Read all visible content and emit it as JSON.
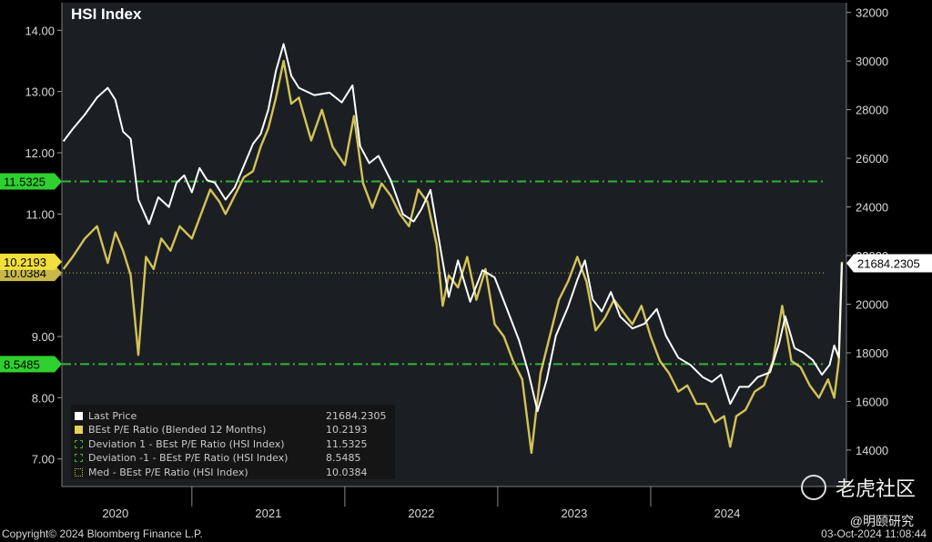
{
  "title": "HSI Index",
  "footer": {
    "copyright": "Copyright© 2024 Bloomberg Finance L.P.",
    "timestamp": "03-Oct-2024 11:08:44"
  },
  "watermarks": {
    "brand": "老虎社区",
    "author": "@明颐研究"
  },
  "colors": {
    "background": "#000000",
    "plot_bg": "#1b1f24",
    "last_price": "#ffffff",
    "pe_ratio": "#e3d15a",
    "deviation": "#2fb52f",
    "median": "#c8b84a",
    "pe_label_bg": "#f2de3c",
    "dev_label_bg": "#2fcf2f"
  },
  "legend": [
    {
      "name": "Last Price",
      "value": "21684.2305",
      "color": "#ffffff",
      "style": "solid"
    },
    {
      "name": "BEst P/E Ratio (Blended 12 Months)",
      "value": "10.2193",
      "color": "#e3d15a",
      "style": "solid"
    },
    {
      "name": "Deviation 1 - BEst P/E Ratio (HSI Index)",
      "value": "11.5325",
      "color": "#2fb52f",
      "style": "dashed"
    },
    {
      "name": "Deviation  -1 - BEst P/E Ratio (HSI Index)",
      "value": "8.5485",
      "color": "#2fb52f",
      "style": "dashed"
    },
    {
      "name": "Med - BEst P/E Ratio (HSI Index)",
      "value": "10.0384",
      "color": "#c8b84a",
      "style": "dotted"
    }
  ],
  "badges": {
    "dev_upper": "11.5325",
    "pe_last": "10.2193",
    "median": "10.0384",
    "dev_lower": "8.5485",
    "price_last": "21684.2305"
  },
  "chart_data": {
    "type": "line",
    "title": "HSI Index",
    "x_ticks": [
      "2020",
      "2021",
      "2022",
      "2023",
      "2024"
    ],
    "x_range": [
      2019.65,
      2024.78
    ],
    "left_axis": {
      "ticks": [
        "7.00",
        "8.00",
        "9.00",
        "10.00",
        "11.00",
        "12.00",
        "13.00",
        "14.00"
      ],
      "ylim": [
        6.55,
        14.45
      ]
    },
    "right_axis": {
      "ticks": [
        "14000",
        "16000",
        "18000",
        "20000",
        "22000",
        "24000",
        "26000",
        "28000",
        "30000",
        "32000"
      ],
      "ylim": [
        12500,
        32400
      ]
    },
    "reference_lines": [
      {
        "name": "Deviation 1 - BEst P/E Ratio (HSI Index)",
        "value": 11.5325,
        "style": "dash-dot"
      },
      {
        "name": "Deviation  -1 - BEst P/E Ratio (HSI Index)",
        "value": 8.5485,
        "style": "dash-dot"
      },
      {
        "name": "Med - BEst P/E Ratio (HSI Index)",
        "value": 10.0384,
        "style": "dotted"
      }
    ],
    "series": [
      {
        "name": "Last Price",
        "axis": "right",
        "points": [
          [
            2019.66,
            26700
          ],
          [
            2019.72,
            27200
          ],
          [
            2019.8,
            27800
          ],
          [
            2019.88,
            28500
          ],
          [
            2019.95,
            28900
          ],
          [
            2020.0,
            28400
          ],
          [
            2020.05,
            27100
          ],
          [
            2020.1,
            26800
          ],
          [
            2020.15,
            24300
          ],
          [
            2020.22,
            23300
          ],
          [
            2020.28,
            24400
          ],
          [
            2020.35,
            24000
          ],
          [
            2020.4,
            25000
          ],
          [
            2020.45,
            25300
          ],
          [
            2020.5,
            24600
          ],
          [
            2020.55,
            25600
          ],
          [
            2020.6,
            25100
          ],
          [
            2020.65,
            25000
          ],
          [
            2020.72,
            24300
          ],
          [
            2020.78,
            24800
          ],
          [
            2020.84,
            25700
          ],
          [
            2020.9,
            26600
          ],
          [
            2020.95,
            27000
          ],
          [
            2021.0,
            28000
          ],
          [
            2021.05,
            29600
          ],
          [
            2021.1,
            30700
          ],
          [
            2021.15,
            29400
          ],
          [
            2021.2,
            28900
          ],
          [
            2021.3,
            28600
          ],
          [
            2021.4,
            28700
          ],
          [
            2021.48,
            28300
          ],
          [
            2021.55,
            29000
          ],
          [
            2021.6,
            26500
          ],
          [
            2021.66,
            25800
          ],
          [
            2021.72,
            26100
          ],
          [
            2021.8,
            25100
          ],
          [
            2021.88,
            23700
          ],
          [
            2021.95,
            23400
          ],
          [
            2022.0,
            23900
          ],
          [
            2022.06,
            24700
          ],
          [
            2022.12,
            22500
          ],
          [
            2022.18,
            20300
          ],
          [
            2022.24,
            21800
          ],
          [
            2022.32,
            20100
          ],
          [
            2022.4,
            21400
          ],
          [
            2022.48,
            21100
          ],
          [
            2022.56,
            19800
          ],
          [
            2022.64,
            18500
          ],
          [
            2022.7,
            17200
          ],
          [
            2022.76,
            15600
          ],
          [
            2022.82,
            16900
          ],
          [
            2022.88,
            18700
          ],
          [
            2022.96,
            19900
          ],
          [
            2023.02,
            21000
          ],
          [
            2023.07,
            21800
          ],
          [
            2023.12,
            20200
          ],
          [
            2023.18,
            19700
          ],
          [
            2023.24,
            20500
          ],
          [
            2023.3,
            19500
          ],
          [
            2023.38,
            19000
          ],
          [
            2023.46,
            19200
          ],
          [
            2023.54,
            19800
          ],
          [
            2023.6,
            18700
          ],
          [
            2023.68,
            17800
          ],
          [
            2023.76,
            17500
          ],
          [
            2023.84,
            17000
          ],
          [
            2023.9,
            16800
          ],
          [
            2023.96,
            17100
          ],
          [
            2024.02,
            15900
          ],
          [
            2024.08,
            16600
          ],
          [
            2024.14,
            16600
          ],
          [
            2024.2,
            17000
          ],
          [
            2024.28,
            17200
          ],
          [
            2024.34,
            18400
          ],
          [
            2024.38,
            19500
          ],
          [
            2024.44,
            18200
          ],
          [
            2024.5,
            18000
          ],
          [
            2024.56,
            17700
          ],
          [
            2024.62,
            17100
          ],
          [
            2024.67,
            17500
          ],
          [
            2024.7,
            18300
          ],
          [
            2024.73,
            17800
          ],
          [
            2024.75,
            21684
          ]
        ]
      },
      {
        "name": "BEst P/E Ratio (Blended 12 Months)",
        "axis": "left",
        "points": [
          [
            2019.66,
            10.1
          ],
          [
            2019.72,
            10.3
          ],
          [
            2019.8,
            10.6
          ],
          [
            2019.88,
            10.8
          ],
          [
            2019.95,
            10.2
          ],
          [
            2020.0,
            10.7
          ],
          [
            2020.05,
            10.4
          ],
          [
            2020.1,
            10.0
          ],
          [
            2020.15,
            8.7
          ],
          [
            2020.2,
            10.3
          ],
          [
            2020.25,
            10.1
          ],
          [
            2020.3,
            10.6
          ],
          [
            2020.36,
            10.4
          ],
          [
            2020.42,
            10.8
          ],
          [
            2020.5,
            10.6
          ],
          [
            2020.56,
            11.0
          ],
          [
            2020.62,
            11.4
          ],
          [
            2020.68,
            11.2
          ],
          [
            2020.72,
            11.0
          ],
          [
            2020.78,
            11.3
          ],
          [
            2020.84,
            11.6
          ],
          [
            2020.9,
            11.7
          ],
          [
            2020.95,
            12.1
          ],
          [
            2021.0,
            12.4
          ],
          [
            2021.05,
            12.9
          ],
          [
            2021.1,
            13.5
          ],
          [
            2021.15,
            12.8
          ],
          [
            2021.2,
            12.9
          ],
          [
            2021.28,
            12.2
          ],
          [
            2021.35,
            12.7
          ],
          [
            2021.42,
            12.1
          ],
          [
            2021.5,
            11.8
          ],
          [
            2021.56,
            12.6
          ],
          [
            2021.62,
            11.5
          ],
          [
            2021.68,
            11.1
          ],
          [
            2021.74,
            11.5
          ],
          [
            2021.8,
            11.3
          ],
          [
            2021.86,
            11.0
          ],
          [
            2021.92,
            10.8
          ],
          [
            2021.98,
            11.4
          ],
          [
            2022.04,
            11.2
          ],
          [
            2022.1,
            10.5
          ],
          [
            2022.14,
            9.5
          ],
          [
            2022.18,
            10.0
          ],
          [
            2022.24,
            9.8
          ],
          [
            2022.3,
            10.3
          ],
          [
            2022.36,
            9.6
          ],
          [
            2022.42,
            10.1
          ],
          [
            2022.48,
            9.2
          ],
          [
            2022.54,
            9.0
          ],
          [
            2022.6,
            8.6
          ],
          [
            2022.66,
            8.3
          ],
          [
            2022.72,
            7.1
          ],
          [
            2022.78,
            8.4
          ],
          [
            2022.84,
            9.0
          ],
          [
            2022.9,
            9.6
          ],
          [
            2022.96,
            9.9
          ],
          [
            2023.02,
            10.3
          ],
          [
            2023.08,
            9.9
          ],
          [
            2023.14,
            9.1
          ],
          [
            2023.2,
            9.3
          ],
          [
            2023.26,
            9.6
          ],
          [
            2023.32,
            9.4
          ],
          [
            2023.38,
            9.2
          ],
          [
            2023.44,
            9.5
          ],
          [
            2023.5,
            9.0
          ],
          [
            2023.56,
            8.6
          ],
          [
            2023.62,
            8.4
          ],
          [
            2023.68,
            8.1
          ],
          [
            2023.74,
            8.2
          ],
          [
            2023.8,
            7.9
          ],
          [
            2023.86,
            7.9
          ],
          [
            2023.92,
            7.6
          ],
          [
            2023.98,
            7.7
          ],
          [
            2024.02,
            7.2
          ],
          [
            2024.06,
            7.7
          ],
          [
            2024.12,
            7.8
          ],
          [
            2024.18,
            8.1
          ],
          [
            2024.24,
            8.2
          ],
          [
            2024.3,
            8.6
          ],
          [
            2024.36,
            9.5
          ],
          [
            2024.42,
            8.6
          ],
          [
            2024.48,
            8.5
          ],
          [
            2024.54,
            8.2
          ],
          [
            2024.6,
            8.0
          ],
          [
            2024.66,
            8.3
          ],
          [
            2024.7,
            8.0
          ],
          [
            2024.73,
            8.6
          ],
          [
            2024.75,
            10.2193
          ]
        ]
      }
    ]
  }
}
